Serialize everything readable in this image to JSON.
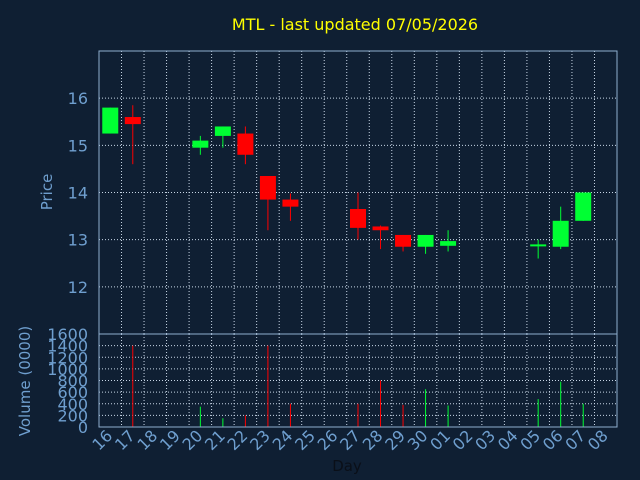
{
  "title": "MTL - last updated 07/05/2026",
  "colors": {
    "background": "#0f1f33",
    "title": "#ffff00",
    "axis_text": "#6f9fcf",
    "frame": "#8fafcf",
    "grid": "#c8d6e6",
    "up": "#00ff33",
    "down": "#ff0000"
  },
  "chart_data": [
    {
      "type": "candlestick",
      "ylabel": "Price",
      "ylim": [
        11,
        17
      ],
      "yticks": [
        12,
        13,
        14,
        15,
        16
      ],
      "grid": true,
      "days": [
        "16",
        "17",
        "18",
        "19",
        "20",
        "21",
        "22",
        "23",
        "24",
        "25",
        "26",
        "27",
        "28",
        "29",
        "30",
        "01",
        "02",
        "03",
        "04",
        "05",
        "06",
        "07",
        "08"
      ],
      "candles": [
        {
          "day": "16",
          "open": 15.25,
          "close": 15.8,
          "high": 15.8,
          "low": 15.25
        },
        {
          "day": "17",
          "open": 15.6,
          "close": 15.45,
          "high": 15.85,
          "low": 14.6
        },
        {
          "day": "20",
          "open": 14.95,
          "close": 15.1,
          "high": 15.2,
          "low": 14.8
        },
        {
          "day": "21",
          "open": 15.2,
          "close": 15.4,
          "high": 15.4,
          "low": 14.95
        },
        {
          "day": "22",
          "open": 15.25,
          "close": 14.8,
          "high": 15.4,
          "low": 14.6
        },
        {
          "day": "23",
          "open": 14.35,
          "close": 13.85,
          "high": 14.35,
          "low": 13.2
        },
        {
          "day": "24",
          "open": 13.85,
          "close": 13.7,
          "high": 13.98,
          "low": 13.4
        },
        {
          "day": "27",
          "open": 13.65,
          "close": 13.25,
          "high": 14.0,
          "low": 13.0
        },
        {
          "day": "28",
          "open": 13.28,
          "close": 13.2,
          "high": 13.3,
          "low": 12.8
        },
        {
          "day": "29",
          "open": 13.1,
          "close": 12.85,
          "high": 13.1,
          "low": 12.75
        },
        {
          "day": "30",
          "open": 12.85,
          "close": 13.1,
          "high": 13.1,
          "low": 12.7
        },
        {
          "day": "01",
          "open": 12.87,
          "close": 12.97,
          "high": 13.2,
          "low": 12.75
        },
        {
          "day": "05",
          "open": 12.88,
          "close": 12.9,
          "high": 13.0,
          "low": 12.6
        },
        {
          "day": "06",
          "open": 12.85,
          "close": 13.4,
          "high": 13.7,
          "low": 12.8
        },
        {
          "day": "07",
          "open": 13.4,
          "close": 14.0,
          "high": 14.0,
          "low": 13.4
        }
      ]
    },
    {
      "type": "bar",
      "xlabel": "Day",
      "ylabel": "Volume (0000)",
      "ylim": [
        0,
        1600
      ],
      "yticks": [
        0,
        200,
        400,
        600,
        800,
        1000,
        1200,
        1400,
        1600
      ],
      "categories": [
        "16",
        "17",
        "18",
        "19",
        "20",
        "21",
        "22",
        "23",
        "24",
        "25",
        "26",
        "27",
        "28",
        "29",
        "30",
        "01",
        "02",
        "03",
        "04",
        "05",
        "06",
        "07",
        "08"
      ],
      "volumes": [
        {
          "day": "17",
          "value": 1400,
          "direction": "down"
        },
        {
          "day": "20",
          "value": 350,
          "direction": "up"
        },
        {
          "day": "21",
          "value": 150,
          "direction": "up"
        },
        {
          "day": "22",
          "value": 200,
          "direction": "down"
        },
        {
          "day": "23",
          "value": 1400,
          "direction": "down"
        },
        {
          "day": "24",
          "value": 400,
          "direction": "down"
        },
        {
          "day": "27",
          "value": 400,
          "direction": "down"
        },
        {
          "day": "28",
          "value": 800,
          "direction": "down"
        },
        {
          "day": "29",
          "value": 380,
          "direction": "down"
        },
        {
          "day": "30",
          "value": 650,
          "direction": "up"
        },
        {
          "day": "01",
          "value": 370,
          "direction": "up"
        },
        {
          "day": "05",
          "value": 480,
          "direction": "up"
        },
        {
          "day": "06",
          "value": 780,
          "direction": "up"
        },
        {
          "day": "07",
          "value": 400,
          "direction": "up"
        }
      ]
    }
  ]
}
